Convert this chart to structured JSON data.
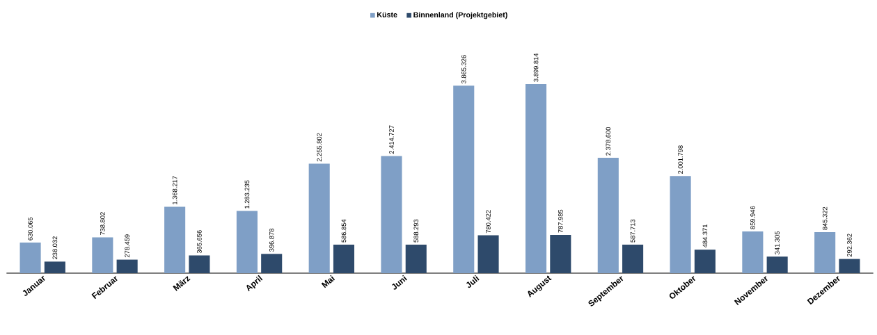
{
  "chart_data": {
    "type": "bar",
    "categories": [
      "Januar",
      "Februar",
      "März",
      "April",
      "Mai",
      "Juni",
      "Juli",
      "August",
      "September",
      "Oktober",
      "November",
      "Dezember"
    ],
    "series": [
      {
        "name": "Küste",
        "color": "#7f9fc6",
        "values": [
          630065,
          738802,
          1368217,
          1283235,
          2255802,
          2414727,
          3865326,
          3899814,
          2378600,
          2001798,
          859946,
          845322
        ],
        "value_labels": [
          "630.065",
          "738.802",
          "1.368.217",
          "1.283.235",
          "2.255.802",
          "2.414.727",
          "3.865.326",
          "3.899.814",
          "2.378.600",
          "2.001.798",
          "859.946",
          "845.322"
        ]
      },
      {
        "name": "Binnenland (Projektgebiet)",
        "color": "#2e4a6b",
        "values": [
          238032,
          278459,
          365656,
          396878,
          586854,
          588293,
          780422,
          787985,
          587713,
          484371,
          341305,
          292362
        ],
        "value_labels": [
          "238.032",
          "278.459",
          "365.656",
          "396.878",
          "586.854",
          "588.293",
          "780.422",
          "787.985",
          "587.713",
          "484.371",
          "341.305",
          "292.362"
        ]
      }
    ],
    "legend": "top"
  }
}
